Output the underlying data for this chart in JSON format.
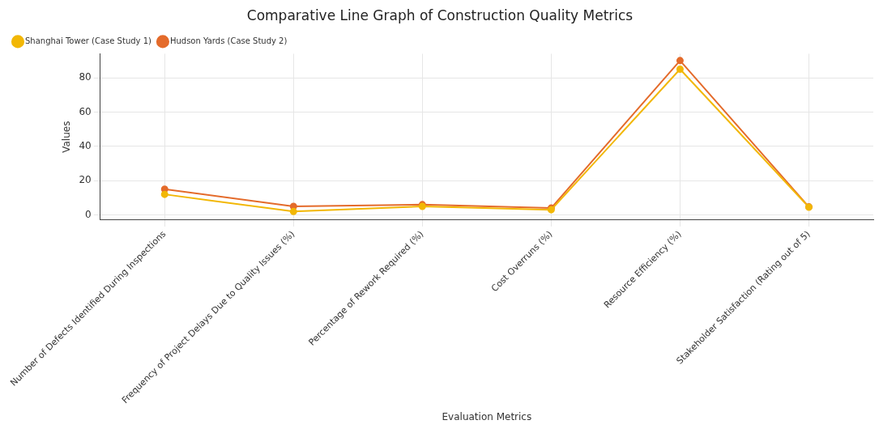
{
  "chart_data": {
    "type": "line",
    "title": "Comparative Line Graph of Construction Quality Metrics",
    "xlabel": "Evaluation Metrics",
    "ylabel": "Values",
    "categories": [
      "Number of Defects Identified During Inspections",
      "Frequency of Project Delays Due to Quality Issues (%)",
      "Percentage of Rework Required (%)",
      "Cost Overruns (%)",
      "Resource Efficiency (%)",
      "Stakeholder Satisfaction (Rating out of 5)"
    ],
    "series": [
      {
        "name": "Shanghai Tower (Case Study 1)",
        "color": "#f2b705",
        "values": [
          12,
          2,
          5,
          3,
          85,
          4.5
        ]
      },
      {
        "name": "Hudson Yards (Case Study 2)",
        "color": "#e46b2b",
        "values": [
          15,
          5,
          6,
          4,
          90,
          4.7
        ]
      }
    ],
    "ylim": [
      -3,
      94
    ],
    "yticks": [
      0,
      20,
      40,
      60,
      80
    ],
    "grid": true,
    "legend": "top left",
    "marker": "circle",
    "line_style": "solid"
  }
}
